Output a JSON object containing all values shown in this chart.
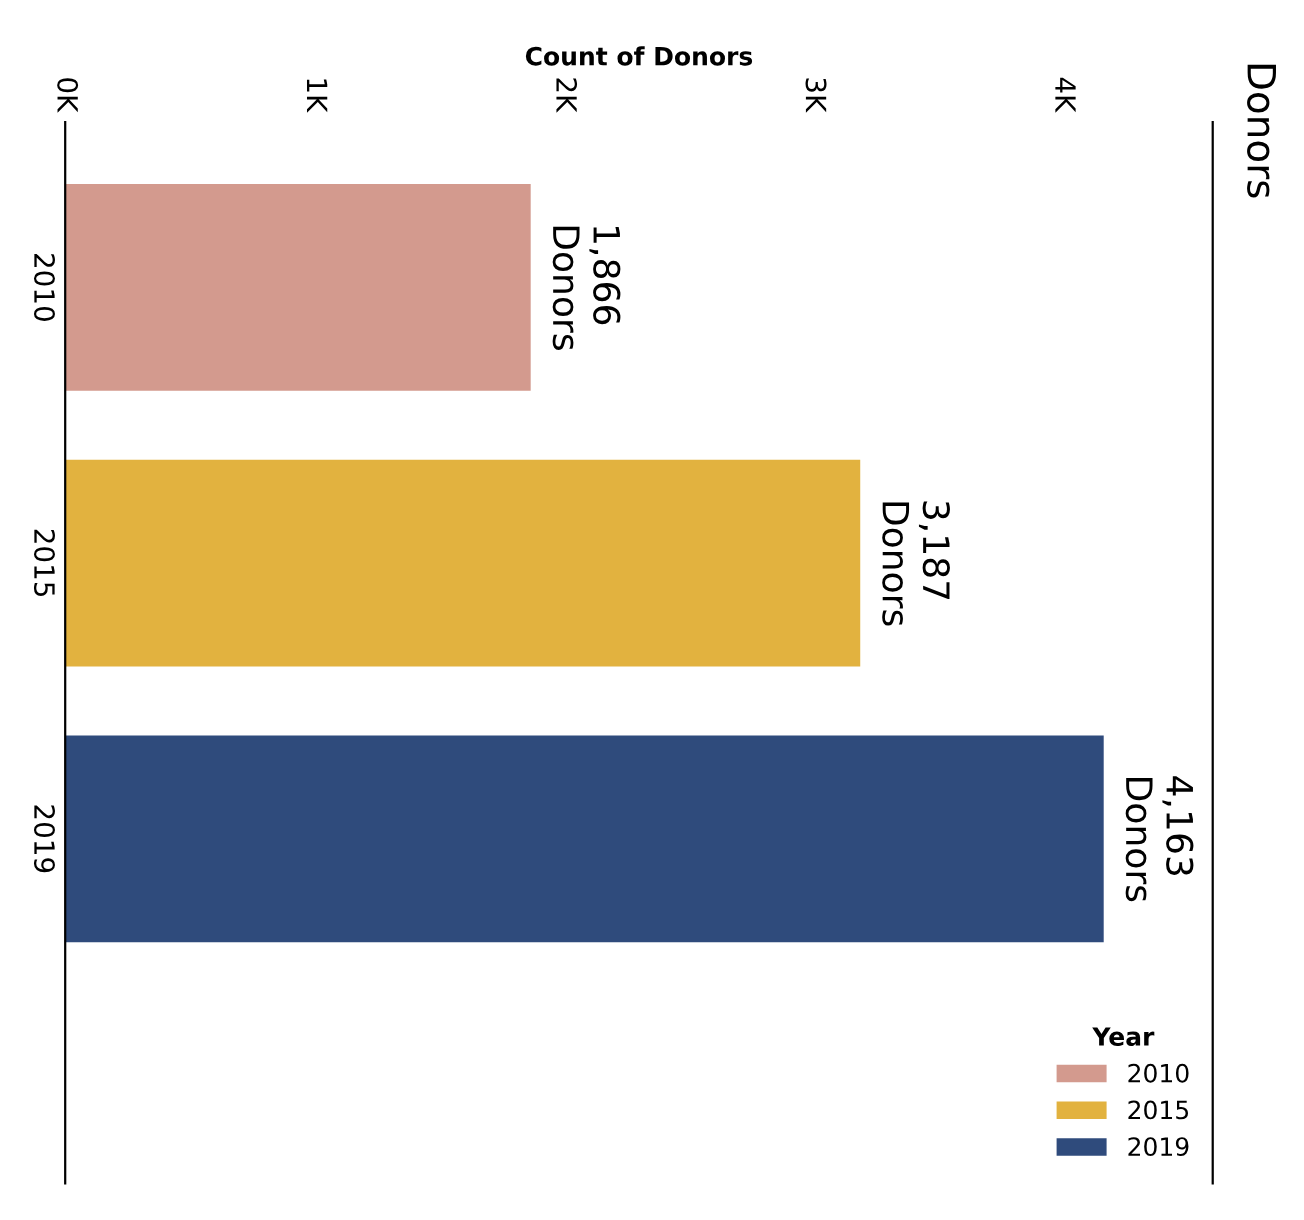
{
  "chart_data": {
    "type": "bar",
    "orientation": "horizontal",
    "title": "Donors",
    "xlabel": "Count of Donors",
    "categories": [
      "2010",
      "2015",
      "2019"
    ],
    "series": [
      {
        "name": "2010",
        "color": "#d39a8e",
        "values": [
          1866,
          null,
          null
        ],
        "value_labels": [
          "1,866\nDonors",
          null,
          null
        ]
      },
      {
        "name": "2015",
        "color": "#e2b23f",
        "values": [
          null,
          3187,
          null
        ],
        "value_labels": [
          null,
          "3,187\nDonors",
          null
        ]
      },
      {
        "name": "2019",
        "color": "#2f4b7c",
        "values": [
          null,
          null,
          4163
        ],
        "value_labels": [
          null,
          null,
          "4,163\nDonors"
        ]
      }
    ],
    "legend_title": "Year",
    "legend": "bottom right",
    "xlim": [
      0,
      4600
    ],
    "xticks": [
      {
        "value": 0,
        "label": "0K"
      },
      {
        "value": 1000,
        "label": "1K"
      },
      {
        "value": 2000,
        "label": "2K"
      },
      {
        "value": 3000,
        "label": "3K"
      },
      {
        "value": 4000,
        "label": "4K"
      }
    ],
    "grid": false
  }
}
